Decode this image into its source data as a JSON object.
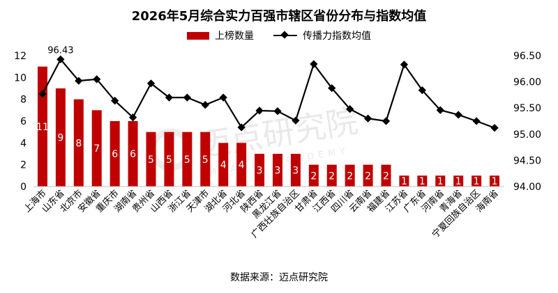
{
  "chart_data": {
    "type": "bar",
    "title": "2026年5月综合实力百强市辖区省份分布与指数均值",
    "categories": [
      "上海市",
      "山东省",
      "北京市",
      "安徽省",
      "重庆市",
      "湖南省",
      "贵州省",
      "山西省",
      "浙江省",
      "天津市",
      "湖北省",
      "河北省",
      "陕西省",
      "黑龙江省",
      "广西壮族自治区",
      "甘肃省",
      "江西省",
      "四川省",
      "云南省",
      "福建省",
      "江苏省",
      "广东省",
      "河南省",
      "青海省",
      "宁夏回族自治区",
      "海南省"
    ],
    "series": [
      {
        "name": "上榜数量",
        "type": "bar",
        "axis": "left",
        "color": "#C00000",
        "values": [
          11,
          9,
          8,
          7,
          6,
          6,
          5,
          5,
          5,
          5,
          4,
          4,
          3,
          3,
          3,
          2,
          2,
          2,
          2,
          2,
          1,
          1,
          1,
          1,
          1,
          1
        ]
      },
      {
        "name": "传播力指数均值",
        "type": "line",
        "axis": "right",
        "color": "#000000",
        "values": [
          95.77,
          96.43,
          96.02,
          96.05,
          95.64,
          95.32,
          95.97,
          95.7,
          95.7,
          95.56,
          95.7,
          95.13,
          95.45,
          95.44,
          95.26,
          96.34,
          95.88,
          95.48,
          95.3,
          95.25,
          96.33,
          95.84,
          95.46,
          95.37,
          95.25,
          95.12
        ]
      }
    ],
    "annotations": [
      {
        "series": "传播力指数均值",
        "category": "山东省",
        "text": "96.43"
      }
    ],
    "y_left": {
      "ylim": [
        0,
        12
      ],
      "ticks": [
        "0",
        "2",
        "4",
        "6",
        "8",
        "10",
        "12"
      ]
    },
    "y_right": {
      "ylim": [
        94.0,
        96.5
      ],
      "ticks": [
        "94.00",
        "94.50",
        "95.00",
        "95.50",
        "96.00",
        "96.50"
      ]
    },
    "grid": false,
    "legend_position": "top-center",
    "watermark": "迈点研究院 MEADIN ACADEMY"
  },
  "source_text": "数据来源：迈点研究院"
}
